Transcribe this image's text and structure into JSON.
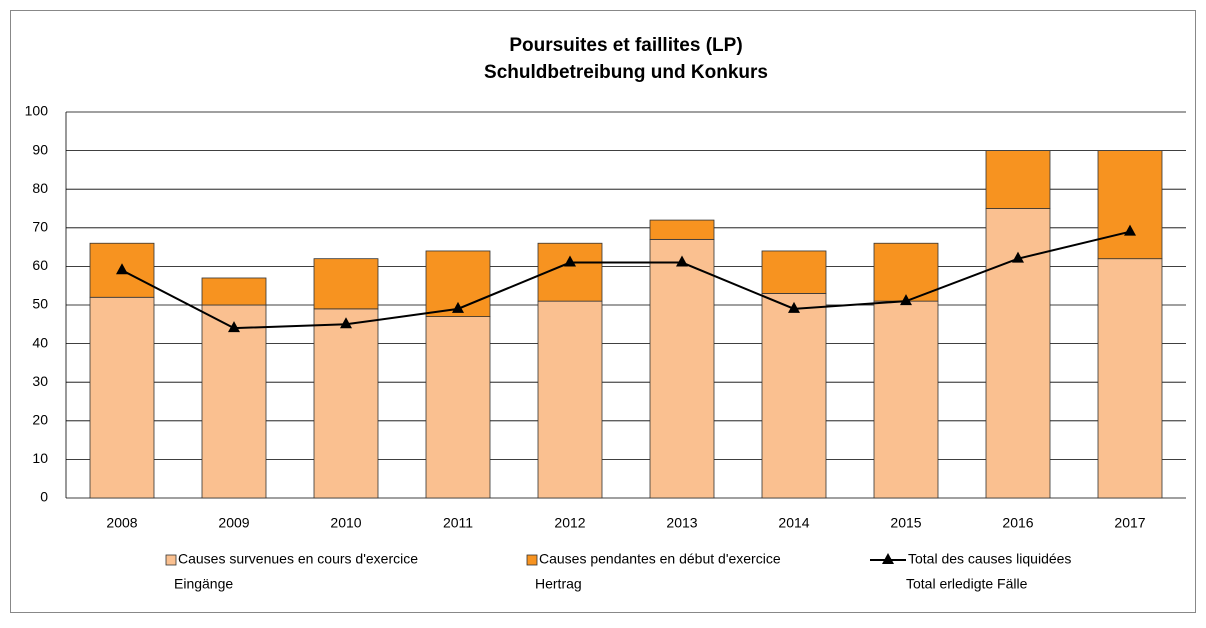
{
  "chart_data": {
    "type": "bar",
    "stacked": true,
    "title": "Poursuites et faillites (LP)",
    "subtitle": "Schuldbetreibung und Konkurs",
    "categories": [
      "2008",
      "2009",
      "2010",
      "2011",
      "2012",
      "2013",
      "2014",
      "2015",
      "2016",
      "2017"
    ],
    "series": [
      {
        "name": [
          "Causes survenues en cours d'exercice",
          "Eingänge"
        ],
        "type": "bar",
        "color": "#fac090",
        "values": [
          52,
          50,
          49,
          47,
          51,
          67,
          53,
          51,
          75,
          62
        ]
      },
      {
        "name": [
          "Causes pendantes en début d'exercice",
          "Hertrag"
        ],
        "type": "bar",
        "color": "#f79320",
        "values": [
          14,
          7,
          13,
          17,
          15,
          5,
          11,
          15,
          15,
          28
        ]
      },
      {
        "name": [
          "Total des causes liquidées",
          "Total erledigte Fälle"
        ],
        "type": "line",
        "color": "#000000",
        "values": [
          59,
          44,
          45,
          49,
          61,
          61,
          49,
          51,
          62,
          69
        ]
      }
    ],
    "ylim": [
      0,
      100
    ],
    "yticks": [
      0,
      10,
      20,
      30,
      40,
      50,
      60,
      70,
      80,
      90,
      100
    ],
    "grid": true,
    "legend": "bottom"
  }
}
